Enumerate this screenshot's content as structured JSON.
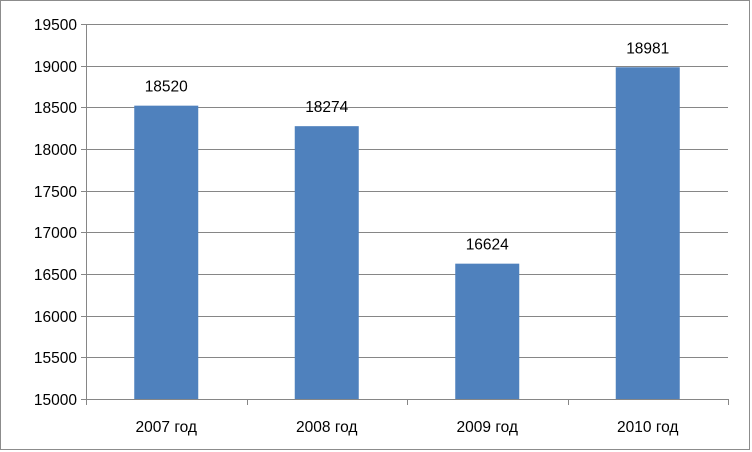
{
  "chart_data": {
    "type": "bar",
    "categories": [
      "2007 год",
      "2008 год",
      "2009 год",
      "2010 год"
    ],
    "values": [
      18520,
      18274,
      16624,
      18981
    ],
    "data_labels": [
      "18520",
      "18274",
      "16624",
      "18981"
    ],
    "y_ticks": [
      "15000",
      "15500",
      "16000",
      "16500",
      "17000",
      "17500",
      "18000",
      "18500",
      "19000",
      "19500"
    ],
    "title": "",
    "xlabel": "",
    "ylabel": "",
    "ylim": [
      15000,
      19500
    ],
    "grid": true,
    "legend": "none",
    "colors": {
      "bar": "#4f81bd",
      "grid": "#868686",
      "axis": "#868686",
      "frame": "#8c8c8c"
    }
  }
}
